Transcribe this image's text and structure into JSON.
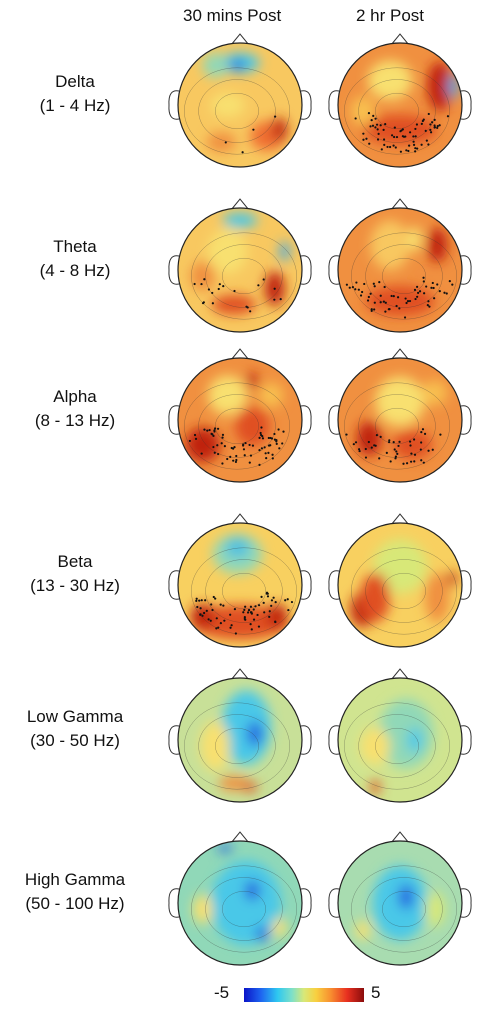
{
  "columns": [
    "30 mins  Post",
    "2 hr Post"
  ],
  "bands": [
    {
      "name": "Delta",
      "range": "(1 - 4 Hz)",
      "maps": [
        {
          "base": "#f8c860",
          "blobs": [
            [
              "#48c8e8",
              0.5,
              0.16,
              0.16,
              0.08
            ],
            [
              "#2060e0",
              0.48,
              0.18,
              0.06,
              0.04
            ],
            [
              "#90d8b8",
              0.3,
              0.18,
              0.1,
              0.1
            ],
            [
              "#f07030",
              0.72,
              0.75,
              0.14,
              0.12
            ],
            [
              "#c02010",
              0.82,
              0.7,
              0.06,
              0.1
            ],
            [
              "#f8e070",
              0.4,
              0.5,
              0.14,
              0.1
            ],
            [
              "#f09040",
              0.35,
              0.8,
              0.12,
              0.08
            ]
          ],
          "dots": 4
        },
        {
          "base": "#f09040",
          "blobs": [
            [
              "#f8e070",
              0.42,
              0.3,
              0.18,
              0.16
            ],
            [
              "#c02010",
              0.82,
              0.35,
              0.1,
              0.2
            ],
            [
              "#40a8e8",
              0.93,
              0.35,
              0.04,
              0.1
            ],
            [
              "#e05020",
              0.5,
              0.7,
              0.3,
              0.12
            ],
            [
              "#f8c050",
              0.2,
              0.55,
              0.1,
              0.12
            ]
          ],
          "dots": 70
        }
      ]
    },
    {
      "name": "Theta",
      "range": "(4 - 8 Hz)",
      "maps": [
        {
          "base": "#f8c860",
          "blobs": [
            [
              "#48c8e8",
              0.5,
              0.1,
              0.14,
              0.06
            ],
            [
              "#f8e070",
              0.4,
              0.35,
              0.16,
              0.18
            ],
            [
              "#c02010",
              0.78,
              0.65,
              0.08,
              0.14
            ],
            [
              "#e05020",
              0.45,
              0.78,
              0.18,
              0.08
            ],
            [
              "#f09040",
              0.2,
              0.55,
              0.1,
              0.12
            ],
            [
              "#40a8e8",
              0.86,
              0.35,
              0.04,
              0.08
            ]
          ],
          "dots": 20
        },
        {
          "base": "#f09040",
          "blobs": [
            [
              "#f8c860",
              0.42,
              0.3,
              0.16,
              0.2
            ],
            [
              "#c02010",
              0.8,
              0.3,
              0.08,
              0.14
            ],
            [
              "#e05020",
              0.5,
              0.75,
              0.28,
              0.12
            ],
            [
              "#f8e070",
              0.62,
              0.25,
              0.06,
              0.1
            ]
          ],
          "dots": 60
        }
      ]
    },
    {
      "name": "Alpha",
      "range": "(8 - 13 Hz)",
      "maps": [
        {
          "base": "#f09040",
          "blobs": [
            [
              "#f8e070",
              0.4,
              0.3,
              0.16,
              0.16
            ],
            [
              "#c02010",
              0.2,
              0.7,
              0.14,
              0.14
            ],
            [
              "#c02010",
              0.6,
              0.18,
              0.05,
              0.06
            ],
            [
              "#e05020",
              0.6,
              0.55,
              0.14,
              0.16
            ],
            [
              "#f8c050",
              0.75,
              0.3,
              0.1,
              0.1
            ]
          ],
          "dots": 70
        },
        {
          "base": "#f09040",
          "blobs": [
            [
              "#f8e070",
              0.5,
              0.35,
              0.2,
              0.2
            ],
            [
              "#c02010",
              0.25,
              0.65,
              0.1,
              0.14
            ],
            [
              "#e05020",
              0.6,
              0.7,
              0.16,
              0.12
            ],
            [
              "#f8c050",
              0.78,
              0.28,
              0.1,
              0.1
            ]
          ],
          "dots": 45
        }
      ]
    },
    {
      "name": "Beta",
      "range": "(13 - 30 Hz)",
      "maps": [
        {
          "base": "#f8d060",
          "blobs": [
            [
              "#90d8b8",
              0.48,
              0.25,
              0.2,
              0.16
            ],
            [
              "#50c0e0",
              0.48,
              0.2,
              0.1,
              0.08
            ],
            [
              "#e05020",
              0.5,
              0.8,
              0.4,
              0.14
            ],
            [
              "#c02010",
              0.2,
              0.75,
              0.1,
              0.1
            ],
            [
              "#c02010",
              0.8,
              0.75,
              0.08,
              0.1
            ]
          ],
          "dots": 70
        },
        {
          "base": "#f8d060",
          "blobs": [
            [
              "#d8e878",
              0.5,
              0.35,
              0.22,
              0.22
            ],
            [
              "#c02010",
              0.2,
              0.7,
              0.1,
              0.14
            ],
            [
              "#e05020",
              0.3,
              0.6,
              0.12,
              0.2
            ],
            [
              "#f09040",
              0.8,
              0.6,
              0.1,
              0.2
            ],
            [
              "#c02010",
              0.92,
              0.45,
              0.04,
              0.06
            ]
          ],
          "dots": 0
        }
      ]
    },
    {
      "name": "Low Gamma",
      "range": "(30 - 50 Hz)",
      "maps": [
        {
          "base": "#c8e098",
          "blobs": [
            [
              "#48c8e8",
              0.55,
              0.4,
              0.2,
              0.3
            ],
            [
              "#2060e0",
              0.62,
              0.45,
              0.06,
              0.1
            ],
            [
              "#f8e070",
              0.3,
              0.55,
              0.12,
              0.2
            ],
            [
              "#f09040",
              0.45,
              0.85,
              0.12,
              0.06
            ],
            [
              "#e05020",
              0.58,
              0.88,
              0.06,
              0.04
            ]
          ],
          "dots": 0
        },
        {
          "base": "#d0e490",
          "blobs": [
            [
              "#90d8b8",
              0.55,
              0.45,
              0.22,
              0.28
            ],
            [
              "#f8e070",
              0.3,
              0.55,
              0.12,
              0.15
            ],
            [
              "#e05020",
              0.3,
              0.88,
              0.04,
              0.06
            ],
            [
              "#48c8e8",
              0.62,
              0.5,
              0.06,
              0.1
            ]
          ],
          "dots": 0
        }
      ]
    },
    {
      "name": "High Gamma",
      "range": "(50 - 100 Hz)",
      "maps": [
        {
          "base": "#90d8b8",
          "blobs": [
            [
              "#48c8e8",
              0.55,
              0.5,
              0.28,
              0.34
            ],
            [
              "#2060e0",
              0.6,
              0.4,
              0.06,
              0.08
            ],
            [
              "#2060e0",
              0.68,
              0.75,
              0.05,
              0.06
            ],
            [
              "#2060e0",
              0.38,
              0.06,
              0.06,
              0.03
            ],
            [
              "#f8e070",
              0.2,
              0.55,
              0.08,
              0.12
            ],
            [
              "#f8e070",
              0.82,
              0.7,
              0.06,
              0.08
            ]
          ],
          "dots": 0
        },
        {
          "base": "#a8dcb0",
          "blobs": [
            [
              "#48c8e8",
              0.5,
              0.5,
              0.22,
              0.3
            ],
            [
              "#2060e0",
              0.55,
              0.45,
              0.06,
              0.1
            ],
            [
              "#d8e878",
              0.78,
              0.55,
              0.08,
              0.14
            ],
            [
              "#f8e070",
              0.2,
              0.72,
              0.06,
              0.08
            ]
          ],
          "dots": 0
        }
      ]
    }
  ],
  "scale": {
    "min": "-5",
    "max": "5"
  }
}
